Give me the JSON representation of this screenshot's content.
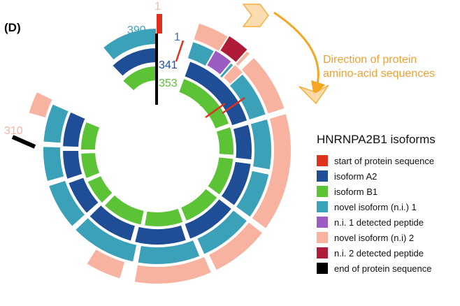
{
  "panel_label": "(D)",
  "direction_text": [
    "Direction of protein",
    "amino-acid sequences"
  ],
  "legend": {
    "title": "HNRNPA2B1 isoforms",
    "items": [
      {
        "label": "start of protein sequence",
        "color": "#e0301e"
      },
      {
        "label": "isoform A2",
        "color": "#1f4e96"
      },
      {
        "label": "isoform B1",
        "color": "#5cc236"
      },
      {
        "label": "novel isoform (n.i.) 1",
        "color": "#3aa1b9"
      },
      {
        "label": "n.i. 1 detected peptide",
        "color": "#9c5cc4"
      },
      {
        "label": "novel isoform (n.i) 2",
        "color": "#f8b3a0"
      },
      {
        "label": "n.i. 2 detected peptide",
        "color": "#b01c38"
      },
      {
        "label": "end of protein sequence",
        "color": "#000000"
      }
    ]
  },
  "annotations": [
    {
      "text": "1",
      "color": "#f8b3a0"
    },
    {
      "text": "390",
      "color": "#3aa1b9"
    },
    {
      "text": "1",
      "color": "#3f6fb5"
    },
    {
      "text": "341",
      "color": "#1f4e96"
    },
    {
      "text": "353",
      "color": "#5cc236"
    },
    {
      "text": "1",
      "color": "#5cc236"
    },
    {
      "text": "1",
      "color": "#1f4e96"
    },
    {
      "text": "310",
      "color": "#f8b3a0"
    }
  ],
  "colors": {
    "arrow": "#f5a623",
    "green": "#5cc236",
    "navy": "#1f4e96",
    "teal": "#3aa1b9",
    "peach": "#f8b3a0",
    "purple": "#9c5cc4",
    "crimson": "#b01c38",
    "red": "#e0301e"
  }
}
